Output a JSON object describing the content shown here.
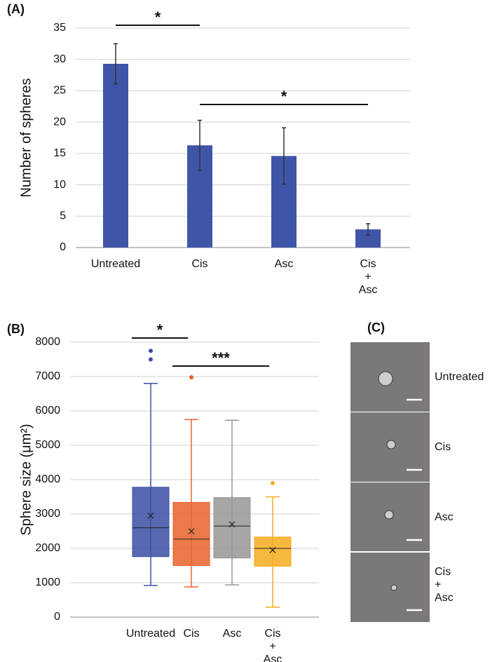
{
  "chart_data": [
    {
      "type": "bar",
      "panel_label": "(A)",
      "ylabel": "Number of spheres",
      "categories": [
        "Untreated",
        "Cis",
        "Asc",
        "Cis\n+\nAsc"
      ],
      "values": [
        29.3,
        16.3,
        14.6,
        2.9
      ],
      "errors": [
        3.2,
        4.0,
        4.5,
        0.9
      ],
      "color": "#3f56a8",
      "ylim": [
        0,
        35
      ],
      "yticks": [
        0,
        5,
        10,
        15,
        20,
        25,
        30,
        35
      ],
      "grid": true,
      "annotations": [
        {
          "text": "*",
          "from": 0,
          "to": 1
        },
        {
          "text": "*",
          "from": 1,
          "to": 3
        }
      ]
    },
    {
      "type": "box",
      "panel_label": "(B)",
      "ylabel": "Sphere size (μm²)",
      "categories": [
        "Untreated",
        "Cis",
        "Asc",
        "Cis\n+\nAsc"
      ],
      "boxes": [
        {
          "color": "#3b4fa3",
          "min": 920,
          "q1": 1760,
          "median": 2600,
          "q3": 3780,
          "max": 6800,
          "mean": 2950,
          "outliers": [
            7500,
            7750
          ]
        },
        {
          "color": "#e8632a",
          "min": 880,
          "q1": 1500,
          "median": 2270,
          "q3": 3340,
          "max": 5750,
          "mean": 2500,
          "outliers": [
            6980
          ]
        },
        {
          "color": "#9a9595",
          "min": 940,
          "q1": 1720,
          "median": 2650,
          "q3": 3480,
          "max": 5730,
          "mean": 2700,
          "outliers": []
        },
        {
          "color": "#f5ac1c",
          "min": 290,
          "q1": 1480,
          "median": 2000,
          "q3": 2330,
          "max": 3500,
          "mean": 1950,
          "outliers": [
            3900
          ]
        }
      ],
      "ylim": [
        0,
        8000
      ],
      "yticks": [
        0,
        1000,
        2000,
        3000,
        4000,
        5000,
        6000,
        7000,
        8000
      ],
      "grid": true,
      "annotations": [
        {
          "text": "*",
          "from": 0,
          "to": 1
        },
        {
          "text": "***",
          "from": 1,
          "to": 3
        }
      ]
    }
  ],
  "panel_c": {
    "label": "(C)",
    "images": [
      "Untreated",
      "Cis",
      "Asc",
      "Cis\n+\nAsc"
    ]
  }
}
